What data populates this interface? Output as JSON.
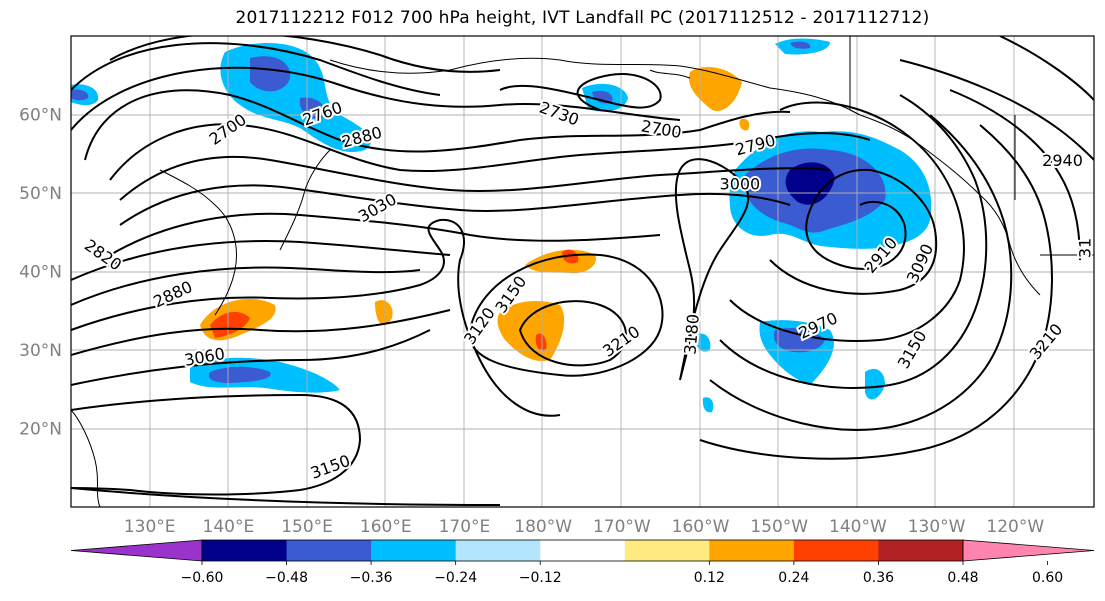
{
  "title": "2017112212 F012 700 hPa height, IVT Landfall PC (2017112512 - 2017112712)",
  "map": {
    "lon_labels": [
      "130°E",
      "140°E",
      "150°E",
      "160°E",
      "170°E",
      "180°W",
      "170°W",
      "160°W",
      "150°W",
      "140°W",
      "130°W",
      "120°W"
    ],
    "lat_labels": [
      "60°N",
      "50°N",
      "40°N",
      "30°N",
      "20°N"
    ],
    "contour_labels": [
      {
        "text": "2700",
        "lon": 140,
        "lat": 58,
        "angle": -35
      },
      {
        "text": "2760",
        "lon": 152,
        "lat": 60,
        "angle": -20
      },
      {
        "text": "2880",
        "lon": 157,
        "lat": 57,
        "angle": -15
      },
      {
        "text": "2730",
        "lon": 182,
        "lat": 60,
        "angle": 20
      },
      {
        "text": "2700",
        "lon": 195,
        "lat": 58,
        "angle": 10
      },
      {
        "text": "2790",
        "lon": 207,
        "lat": 56,
        "angle": -15
      },
      {
        "text": "3000",
        "lon": 205,
        "lat": 51,
        "angle": 0
      },
      {
        "text": "3030",
        "lon": 159,
        "lat": 48,
        "angle": -30
      },
      {
        "text": "2820",
        "lon": 124,
        "lat": 42,
        "angle": 35
      },
      {
        "text": "2880",
        "lon": 133,
        "lat": 37,
        "angle": -25
      },
      {
        "text": "3060",
        "lon": 137,
        "lat": 29,
        "angle": -10
      },
      {
        "text": "3120",
        "lon": 172,
        "lat": 33,
        "angle": -55
      },
      {
        "text": "3150",
        "lon": 176,
        "lat": 37,
        "angle": -55
      },
      {
        "text": "3210",
        "lon": 190,
        "lat": 31,
        "angle": -35
      },
      {
        "text": "3180",
        "lon": 199,
        "lat": 32,
        "angle": -85
      },
      {
        "text": "2970",
        "lon": 215,
        "lat": 33,
        "angle": -25
      },
      {
        "text": "2910",
        "lon": 223,
        "lat": 42,
        "angle": -50
      },
      {
        "text": "3090",
        "lon": 228,
        "lat": 41,
        "angle": -65
      },
      {
        "text": "3150",
        "lon": 227,
        "lat": 30,
        "angle": -60
      },
      {
        "text": "3210",
        "lon": 244,
        "lat": 31,
        "angle": -50
      },
      {
        "text": "2940",
        "lon": 246,
        "lat": 54,
        "angle": 0
      },
      {
        "text": "3150",
        "lon": 153,
        "lat": 15,
        "angle": -20
      },
      {
        "text": "31",
        "lon": 249,
        "lat": 43,
        "angle": -90
      }
    ]
  },
  "colorbar": {
    "colors": [
      "#9933cc",
      "#00008b",
      "#3b5bd0",
      "#00bfff",
      "#b3e5fc",
      "#ffffff",
      "#ffeb80",
      "#ffa500",
      "#ff4000",
      "#b22222",
      "#ff85b0"
    ],
    "labels": [
      "−0.60",
      "−0.48",
      "−0.36",
      "−0.24",
      "−0.12",
      "0.12",
      "0.24",
      "0.36",
      "0.48",
      "0.60"
    ]
  }
}
